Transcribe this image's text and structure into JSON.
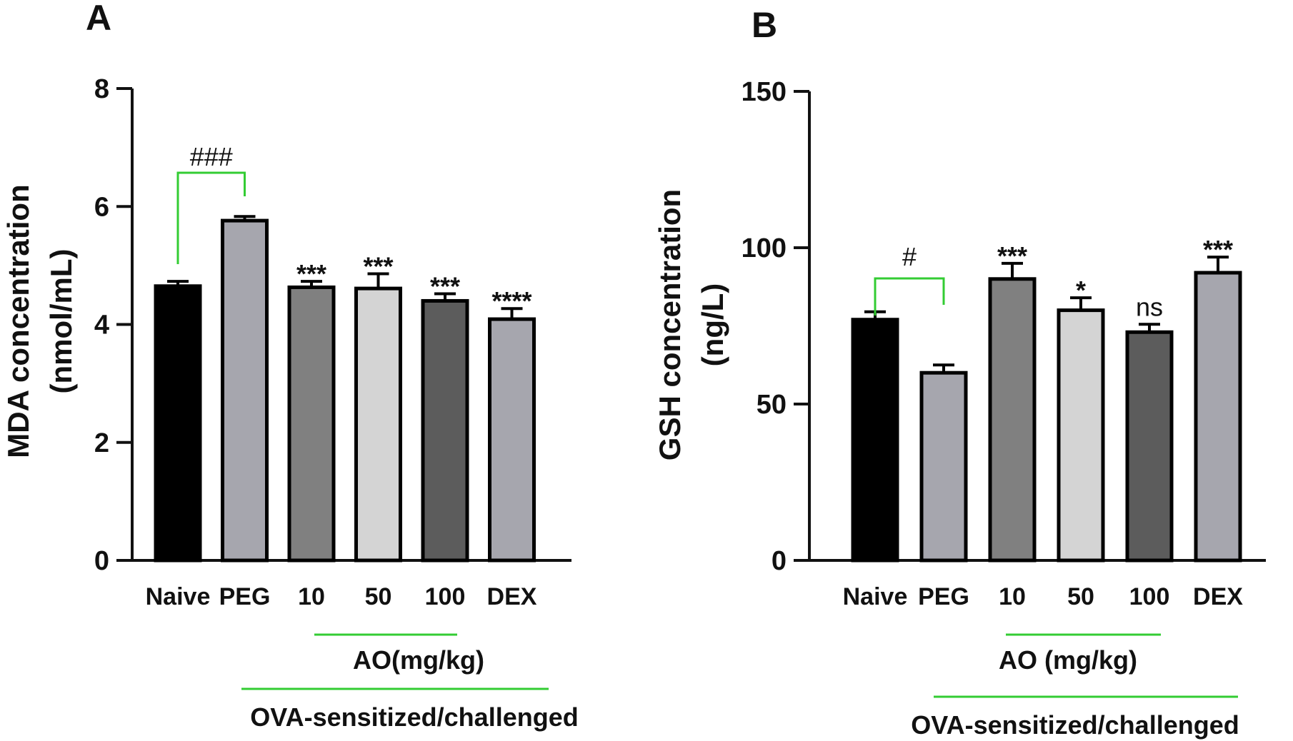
{
  "chart_data": [
    {
      "type": "bar",
      "panel_label": "A",
      "categories": [
        "Naive",
        "PEG",
        "10",
        "50",
        "100",
        "DEX"
      ],
      "values": [
        4.65,
        5.76,
        4.63,
        4.61,
        4.4,
        4.09
      ],
      "errors": [
        0.08,
        0.07,
        0.1,
        0.25,
        0.12,
        0.18
      ],
      "colors": [
        "#000000",
        "#a6a6ae",
        "#808080",
        "#d4d4d4",
        "#5c5c5c",
        "#a6a6ae"
      ],
      "significance": [
        "",
        "",
        "***",
        "***",
        "***",
        "****"
      ],
      "comparison": {
        "from": 0,
        "to": 1,
        "label": "###",
        "color": "#33cc33"
      },
      "ylabel_line1": "MDA concentration",
      "ylabel_line2": "(nmol/mL)",
      "ylim": [
        0,
        8
      ],
      "yticks": [
        0,
        2,
        4,
        6,
        8
      ],
      "group_labels": [
        {
          "text": "AO(mg/kg)",
          "from": 2,
          "to": 4
        },
        {
          "text": "OVA-sensitized/challenged",
          "from": 1,
          "to": 5
        }
      ],
      "grid": false
    },
    {
      "type": "bar",
      "panel_label": "B",
      "categories": [
        "Naive",
        "PEG",
        "10",
        "50",
        "100",
        "DEX"
      ],
      "values": [
        77,
        60,
        90,
        80,
        73,
        92
      ],
      "errors": [
        2.5,
        2.5,
        5,
        4,
        2.5,
        5
      ],
      "colors": [
        "#000000",
        "#a6a6ae",
        "#808080",
        "#d4d4d4",
        "#5c5c5c",
        "#a6a6ae"
      ],
      "significance": [
        "",
        "",
        "***",
        "*",
        "ns",
        "***"
      ],
      "comparison": {
        "from": 0,
        "to": 1,
        "label": "#",
        "color": "#33cc33"
      },
      "ylabel_line1": "GSH concentration",
      "ylabel_line2": "(ng/L)",
      "ylim": [
        0,
        150
      ],
      "yticks": [
        0,
        50,
        100,
        150
      ],
      "group_labels": [
        {
          "text": "AO (mg/kg)",
          "from": 2,
          "to": 4
        },
        {
          "text": "OVA-sensitized/challenged",
          "from": 1,
          "to": 5
        }
      ],
      "grid": false
    }
  ]
}
